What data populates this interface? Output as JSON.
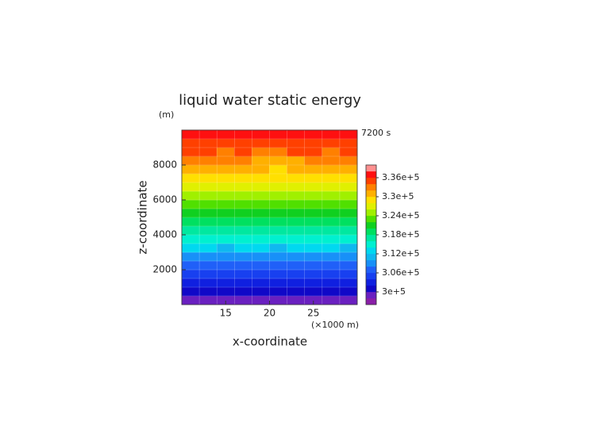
{
  "chart_data": {
    "type": "contour",
    "title": "liquid water static energy",
    "y_unit": "(m)",
    "x_unit": "(×1000 m)",
    "time_label": "7200 s",
    "xlabel": "x-coordinate",
    "ylabel": "z-coordinate",
    "xlim": [
      10,
      30
    ],
    "ylim": [
      0,
      10000
    ],
    "xticks": [
      15,
      20,
      25
    ],
    "yticks": [
      2000,
      4000,
      6000,
      8000
    ],
    "grid": true,
    "x_edges": [
      10,
      12,
      14,
      16,
      18,
      20,
      22,
      24,
      26,
      28,
      30
    ],
    "y_edges": [
      0,
      500,
      1000,
      1500,
      2000,
      2500,
      3000,
      3500,
      4000,
      4500,
      5000,
      5500,
      6000,
      6500,
      7000,
      7500,
      8000,
      8500,
      9000,
      9500,
      10000
    ],
    "values": [
      [
        299400,
        299600,
        299500,
        299300,
        299500,
        299700,
        299400,
        299500,
        299600,
        299400
      ],
      [
        301500,
        301300,
        301600,
        301500,
        301200,
        301400,
        301700,
        301500,
        301300,
        301500
      ],
      [
        303600,
        303400,
        303500,
        303800,
        303500,
        303300,
        303600,
        303500,
        303700,
        303400
      ],
      [
        305500,
        305700,
        305400,
        305500,
        305600,
        305300,
        305500,
        305800,
        305500,
        305500
      ],
      [
        307400,
        307600,
        307500,
        307300,
        307600,
        307500,
        307400,
        307600,
        307500,
        307300
      ],
      [
        309600,
        309400,
        309500,
        309700,
        309500,
        309300,
        309600,
        309500,
        309400,
        309600
      ],
      [
        312000,
        312200,
        311900,
        312000,
        312100,
        311800,
        312000,
        312200,
        312000,
        311900
      ],
      [
        314500,
        314300,
        314600,
        314500,
        314400,
        314700,
        314500,
        314300,
        314600,
        314500
      ],
      [
        317000,
        317200,
        316900,
        317100,
        317000,
        316800,
        317100,
        317000,
        316900,
        317200
      ],
      [
        319500,
        319300,
        319600,
        319400,
        319500,
        319700,
        319400,
        319500,
        319600,
        319400
      ],
      [
        321600,
        321400,
        321500,
        321700,
        321300,
        321500,
        321600,
        321400,
        321500,
        321700
      ],
      [
        323500,
        323700,
        323400,
        323500,
        323300,
        323400,
        323600,
        323500,
        323400,
        323600
      ],
      [
        325600,
        325400,
        325500,
        325300,
        324600,
        324500,
        325300,
        325500,
        325600,
        325400
      ],
      [
        327500,
        327600,
        327400,
        327200,
        326500,
        326400,
        327100,
        327500,
        327400,
        327600
      ],
      [
        329500,
        329400,
        329600,
        329100,
        328500,
        328400,
        329000,
        329500,
        329600,
        329400
      ],
      [
        331000,
        331200,
        330900,
        330600,
        330000,
        329900,
        330500,
        331000,
        331100,
        331000
      ],
      [
        332600,
        332500,
        332400,
        332000,
        331400,
        331300,
        331900,
        332500,
        332600,
        332500
      ],
      [
        334000,
        334100,
        333900,
        334000,
        333800,
        333700,
        334000,
        334100,
        333900,
        334000
      ],
      [
        335500,
        335600,
        335400,
        335500,
        335700,
        335500,
        335400,
        335600,
        335500,
        335500
      ],
      [
        337600,
        337400,
        337500,
        337700,
        337500,
        337300,
        337600,
        337500,
        337400,
        337600
      ]
    ],
    "levels": [
      296000,
      298000,
      300000,
      302000,
      304000,
      306000,
      308000,
      310000,
      312000,
      314000,
      316000,
      318000,
      320000,
      322000,
      324000,
      326000,
      328000,
      330000,
      332000,
      334000,
      336000,
      338000,
      340000
    ],
    "colors": [
      "#8a1fa8",
      "#6a20c0",
      "#1008c8",
      "#1020e0",
      "#1840f0",
      "#2060f8",
      "#1890f8",
      "#10b8f0",
      "#00d8f0",
      "#00f0d0",
      "#00e8a0",
      "#00e060",
      "#10d020",
      "#50e000",
      "#a0f000",
      "#e0f000",
      "#ffe000",
      "#ffb000",
      "#ff8000",
      "#ff4000",
      "#ff1010",
      "#ff9090"
    ],
    "clim": [
      296000,
      340000
    ],
    "colorbar_ticks": [
      {
        "value": 300000,
        "label": "3e+5"
      },
      {
        "value": 306000,
        "label": "3.06e+5"
      },
      {
        "value": 312000,
        "label": "3.12e+5"
      },
      {
        "value": 318000,
        "label": "3.18e+5"
      },
      {
        "value": 324000,
        "label": "3.24e+5"
      },
      {
        "value": 330000,
        "label": "3.3e+5"
      },
      {
        "value": 336000,
        "label": "3.36e+5"
      }
    ]
  }
}
